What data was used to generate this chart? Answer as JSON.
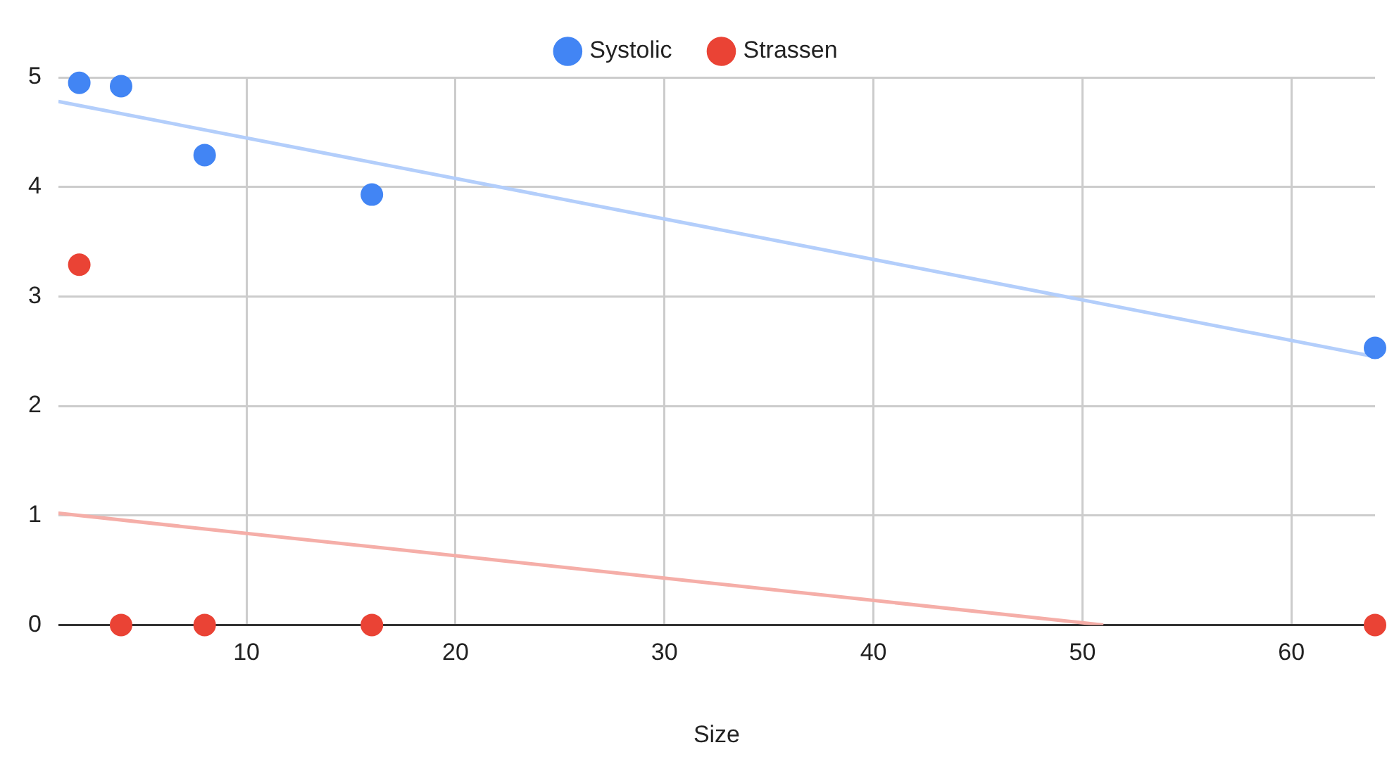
{
  "chart_data": {
    "type": "scatter",
    "xlabel": "Size",
    "xlim": [
      1,
      64
    ],
    "xticks": [
      10,
      20,
      30,
      40,
      50,
      60
    ],
    "ylim": [
      0,
      5
    ],
    "yticks": [
      0,
      1,
      2,
      3,
      4,
      5
    ],
    "grid": true,
    "legend": "top",
    "series": [
      {
        "name": "Systolic",
        "marker": "circle",
        "color": "#4285f4",
        "x": [
          2,
          4,
          8,
          16,
          64
        ],
        "values": [
          4.95,
          4.92,
          4.29,
          3.93,
          2.53
        ]
      },
      {
        "name": "Strassen",
        "marker": "circle",
        "color": "#ea4335",
        "x": [
          2,
          4,
          8,
          16,
          64
        ],
        "values": [
          3.29,
          0,
          0,
          0,
          0
        ]
      },
      {
        "type": "line",
        "marker": "none",
        "color": "#b3cefb",
        "x": [
          1,
          64
        ],
        "values": [
          4.78,
          2.45
        ]
      },
      {
        "type": "line",
        "marker": "none",
        "color": "#f5aea8",
        "x": [
          1,
          51
        ],
        "values": [
          1.02,
          0
        ]
      }
    ]
  }
}
